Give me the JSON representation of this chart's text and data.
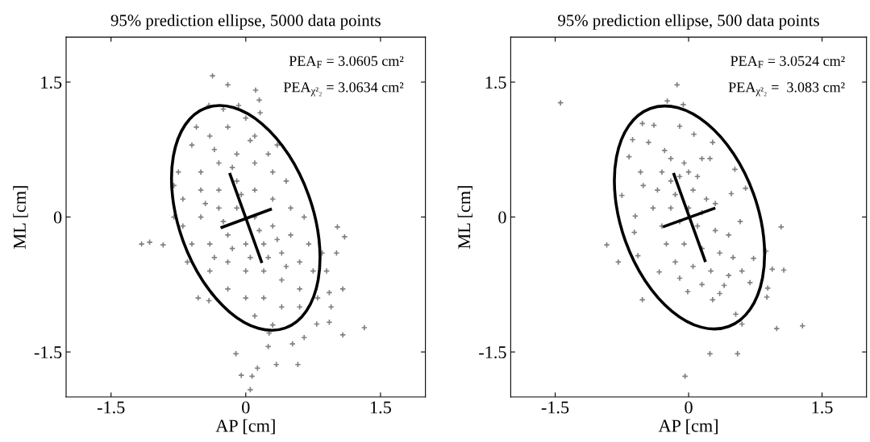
{
  "chart_data": [
    {
      "type": "scatter",
      "title": "95% prediction ellipse, 5000 data points",
      "xlabel": "AP [cm]",
      "ylabel": "ML [cm]",
      "xlim": [
        -2,
        2
      ],
      "ylim": [
        -2,
        2
      ],
      "xticks": [
        -1.5,
        0,
        1.5
      ],
      "yticks": [
        -1.5,
        0,
        1.5
      ],
      "grid": false,
      "legend": false,
      "marker": "cross",
      "annotations": [
        "PEA$_{F}$ = 3.0605 cm²",
        "PEA$_{χ²₂}$ = 3.0634 cm²"
      ],
      "series": [
        {
          "type": "line",
          "color": "#000000",
          "marker": "none",
          "x": [
            -0.18,
            0.18
          ],
          "values": [
            0.49,
            -0.51
          ]
        },
        {
          "type": "line",
          "color": "#000000",
          "marker": "none",
          "x": [
            -0.28,
            0.29
          ],
          "values": [
            -0.12,
            0.09
          ]
        },
        {
          "color": "#808080",
          "x": [
            -0.37,
            -0.2,
            0.11,
            -1.16,
            -1.07,
            -0.92,
            1.02,
            1.1,
            1.08,
            1.32,
            1.08,
            0.93,
            0.05,
            0.07,
            -0.05,
            0.13,
            0.34,
            0.58,
            0.52,
            0.65,
            -0.11,
            0.25,
            0.26,
            -0.53,
            -0.41,
            0.79,
            0.93,
            1.01,
            -0.8,
            -0.41,
            -0.08,
            0.16,
            -0.6,
            -0.4,
            -0.2,
            0,
            0.1,
            -0.5,
            -0.3,
            -0.1,
            0.1,
            0.3,
            -0.7,
            -0.5,
            -0.3,
            -0.1,
            0.1,
            0.3,
            0.5,
            -0.7,
            -0.5,
            -0.3,
            -0.1,
            0.1,
            0.3,
            0.5,
            0.7,
            -0.6,
            -0.4,
            -0.2,
            0,
            0.2,
            0.4,
            0.6,
            0.75,
            -0.4,
            -0.2,
            0,
            0.2,
            0.4,
            0.6,
            -0.2,
            0,
            0.2,
            0.4,
            0.6,
            0.1,
            0.3,
            -0.65,
            0.8,
            0.85,
            -0.8,
            -0.75,
            -0.55,
            -0.25,
            0.15,
            0.35,
            0.45,
            0.65,
            0.9,
            0.95,
            -0.45,
            -0.25,
            -0.05,
            0.15,
            0.35,
            -0.15,
            0.05,
            0.25,
            0.45,
            -0.35,
            -0.15,
            -0.35,
            0.05,
            0.25
          ],
          "values": [
            1.57,
            1.47,
            1.41,
            -0.3,
            -0.28,
            -0.31,
            -0.11,
            -0.22,
            -0.8,
            -1.23,
            -1.31,
            -1.17,
            -1.92,
            -1.77,
            -1.76,
            -1.68,
            -1.64,
            -1.64,
            -1.41,
            -1.34,
            -1.52,
            -1.44,
            -1.29,
            -0.9,
            -0.93,
            -1.19,
            -0.84,
            -0.4,
            0.35,
            1.24,
            1.24,
            1.16,
            0.8,
            0.9,
            1.0,
            1.1,
            0.9,
            0.5,
            0.6,
            0.7,
            0.6,
            0.5,
            0.2,
            0.3,
            0.3,
            0.4,
            0.3,
            0.2,
            0.1,
            -0.1,
            0,
            0.1,
            0.1,
            0,
            -0.1,
            -0.2,
            -0.3,
            -0.3,
            -0.3,
            -0.2,
            -0.3,
            -0.3,
            -0.4,
            -0.5,
            -0.6,
            -0.6,
            -0.5,
            -0.6,
            -0.6,
            -0.7,
            -0.8,
            -0.8,
            -0.9,
            -0.9,
            -1.0,
            -1.0,
            -1.1,
            -1.2,
            -0.5,
            -0.9,
            -0.4,
            0,
            0.5,
            1.0,
            1.2,
            1.3,
            0.8,
            0.4,
            0,
            -0.6,
            -1.0,
            0.15,
            -0.05,
            0.25,
            -0.15,
            -0.25,
            -0.35,
            -0.45,
            -0.45,
            -0.55,
            -0.45,
            0.55,
            0.75,
            0.85,
            0.7
          ]
        }
      ]
    },
    {
      "type": "scatter",
      "title": "95% prediction ellipse, 500 data points",
      "xlabel": "AP [cm]",
      "ylabel": "ML [cm]",
      "xlim": [
        -2,
        2
      ],
      "ylim": [
        -2,
        2
      ],
      "xticks": [
        -1.5,
        0,
        1.5
      ],
      "yticks": [
        -1.5,
        0,
        1.5
      ],
      "grid": false,
      "legend": false,
      "marker": "cross",
      "annotations": [
        "PEA$_{F}$ = 3.0524 cm²",
        "PEA$_{χ²₂}$ =  3.083 cm²"
      ],
      "series": [
        {
          "type": "line",
          "color": "#000000",
          "marker": "none",
          "x": [
            -0.17,
            0.19
          ],
          "values": [
            0.49,
            -0.5
          ]
        },
        {
          "type": "line",
          "color": "#000000",
          "marker": "none",
          "x": [
            -0.29,
            0.3
          ],
          "values": [
            -0.11,
            0.1
          ]
        },
        {
          "color": "#808080",
          "x": [
            -0.13,
            -1.44,
            -0.92,
            -0.79,
            -0.52,
            1.04,
            1.07,
            0.94,
            0.99,
            1.28,
            0.24,
            0.55,
            -0.04,
            0.88,
            0.89,
            0.87,
            0.53,
            0.6,
            -0.67,
            -0.75,
            -0.63,
            -0.52,
            -0.24,
            -0.06,
            -0.39,
            -0.1,
            0.06,
            0.27,
            0.24,
            0.52,
            0.48,
            0.64,
            0.58,
            0.73,
            0.69,
            0.4,
            0.27,
            -0.01,
            -0.1,
            -0.33,
            -0.57,
            -0.61,
            -0.6,
            -0.51,
            -0.54,
            -0.45,
            -0.27,
            -0.3,
            -0.2,
            -0.1,
            0,
            0.1,
            -0.35,
            -0.15,
            0.05,
            0.2,
            0.3,
            -0.4,
            -0.2,
            0,
            0.15,
            -0.3,
            -0.1,
            0.1,
            0.3,
            0.45,
            -0.25,
            -0.05,
            0.15,
            0.35,
            0.5,
            -0.15,
            0.05,
            0.25,
            0.45,
            0.6,
            0.35,
            0.15,
            -0.05,
            0.15,
            -0.2
          ],
          "values": [
            1.47,
            1.27,
            -0.31,
            -0.5,
            -0.92,
            -0.11,
            -0.59,
            -0.58,
            -1.24,
            -1.21,
            -1.52,
            -1.52,
            -1.77,
            -0.89,
            -0.79,
            -0.38,
            -1.08,
            -1.19,
            0.67,
            0.24,
            0.86,
            1.04,
            1.29,
            1.25,
            1.02,
            1.01,
            0.92,
            0.83,
            0.65,
            0.53,
            0.26,
            0.32,
            -0.05,
            -0.46,
            -0.73,
            -0.76,
            -0.92,
            -0.83,
            -0.68,
            -0.61,
            -0.43,
            -0.17,
            0.01,
            0.35,
            0.5,
            0.83,
            0.74,
            0.5,
            0.4,
            0.45,
            0.5,
            0.45,
            0.3,
            0.25,
            0.3,
            0.2,
            0.15,
            0.1,
            0.1,
            0.1,
            0.05,
            -0.1,
            -0.05,
            -0.1,
            -0.15,
            -0.2,
            -0.3,
            -0.3,
            -0.35,
            -0.4,
            -0.45,
            -0.5,
            -0.55,
            -0.6,
            -0.65,
            -0.6,
            -0.85,
            -0.75,
            0.6,
            0.65,
            0.65
          ]
        }
      ]
    }
  ]
}
